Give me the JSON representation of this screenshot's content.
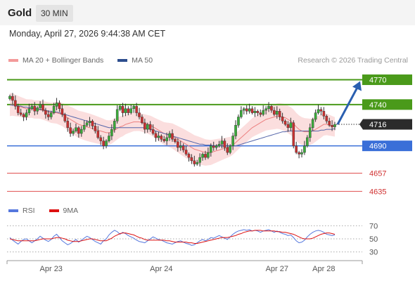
{
  "header": {
    "symbol": "Gold",
    "timeframe": "30 MIN",
    "datetime": "Monday, April 27, 2026 9:44:38 AM CET"
  },
  "legend": {
    "bollinger_label": "MA 20 + Bollinger Bands",
    "ma50_label": "MA 50",
    "credit": "Research © 2026 Trading Central",
    "rsi_label": "RSI",
    "rsi_ma_label": "9MA"
  },
  "colors": {
    "resistance": "#4a9a1a",
    "pivot": "#3a6fd8",
    "support": "#e05050",
    "last_price": "#2b2b2b",
    "arrow": "#2a5fb0",
    "ma20": "#ec8080",
    "ma50": "#5566aa",
    "band": "#fbdada",
    "candle_up": "#3aaa3a",
    "candle_down": "#c83030",
    "rsi": "#5577dd",
    "rsi_ma": "#dd1111"
  },
  "chart_data": [
    {
      "type": "candlestick",
      "title": "Gold",
      "timeframe": "30 MIN",
      "x_tick_labels": [
        "Apr 23",
        "Apr 24",
        "Apr 27",
        "Apr 28"
      ],
      "ylim": [
        4620,
        4790
      ],
      "last_price": 4716,
      "levels": [
        {
          "value": 4770,
          "label": "4770",
          "kind": "resistance"
        },
        {
          "value": 4740,
          "label": "4740",
          "kind": "resistance"
        },
        {
          "value": 4716,
          "label": "4716",
          "kind": "last"
        },
        {
          "value": 4690,
          "label": "4690",
          "kind": "pivot"
        },
        {
          "value": 4657,
          "label": "4657",
          "kind": "support"
        },
        {
          "value": 4635,
          "label": "4635",
          "kind": "support"
        }
      ],
      "forecast_arrow": {
        "from": 4716,
        "to": 4770
      },
      "close": [
        4750,
        4745,
        4738,
        4730,
        4728,
        4725,
        4730,
        4735,
        4738,
        4732,
        4736,
        4740,
        4733,
        4728,
        4725,
        4730,
        4738,
        4742,
        4735,
        4728,
        4720,
        4712,
        4705,
        4708,
        4712,
        4705,
        4710,
        4715,
        4718,
        4720,
        4714,
        4708,
        4700,
        4696,
        4690,
        4696,
        4702,
        4710,
        4720,
        4734,
        4738,
        4730,
        4735,
        4730,
        4735,
        4738,
        4730,
        4725,
        4718,
        4710,
        4716,
        4710,
        4705,
        4700,
        4702,
        4698,
        4696,
        4700,
        4705,
        4698,
        4695,
        4688,
        4690,
        4685,
        4680,
        4676,
        4672,
        4668,
        4670,
        4676,
        4680,
        4676,
        4682,
        4690,
        4688,
        4690,
        4692,
        4696,
        4688,
        4682,
        4690,
        4702,
        4715,
        4725,
        4733,
        4735,
        4732,
        4735,
        4730,
        4732,
        4730,
        4728,
        4733,
        4735,
        4738,
        4733,
        4728,
        4732,
        4725,
        4720,
        4716,
        4712,
        4718,
        4690,
        4682,
        4680,
        4682,
        4690,
        4700,
        4712,
        4722,
        4730,
        4734,
        4732,
        4726,
        4720,
        4715,
        4713,
        4716
      ],
      "ma20": [
        4740,
        4740,
        4739,
        4738,
        4737,
        4736,
        4735,
        4735,
        4735,
        4734,
        4734,
        4734,
        4733,
        4732,
        4731,
        4730,
        4730,
        4730,
        4729,
        4728,
        4726,
        4724,
        4722,
        4720,
        4718,
        4716,
        4715,
        4714,
        4713,
        4712,
        4711,
        4710,
        4709,
        4708,
        4707,
        4706,
        4706,
        4707,
        4709,
        4711,
        4713,
        4714,
        4716,
        4717,
        4718,
        4719,
        4719,
        4719,
        4718,
        4717,
        4716,
        4715,
        4713,
        4711,
        4709,
        4707,
        4705,
        4704,
        4703,
        4702,
        4700,
        4698,
        4696,
        4694,
        4692,
        4690,
        4688,
        4686,
        4685,
        4684,
        4683,
        4682,
        4682,
        4682,
        4683,
        4684,
        4685,
        4686,
        4687,
        4688,
        4689,
        4691,
        4694,
        4697,
        4700,
        4703,
        4706,
        4709,
        4712,
        4714,
        4716,
        4718,
        4720,
        4722,
        4723,
        4724,
        4725,
        4726,
        4726,
        4725,
        4724,
        4722,
        4720,
        4717,
        4713,
        4710,
        4708,
        4707,
        4707,
        4707,
        4708,
        4710,
        4712,
        4714,
        4716,
        4716,
        4715,
        4714,
        4713
      ],
      "ma50": [
        4740,
        4739,
        4739,
        4738,
        4738,
        4737,
        4737,
        4736,
        4736,
        4735,
        4735,
        4734,
        4734,
        4733,
        4732,
        4732,
        4731,
        4731,
        4730,
        4729,
        4728,
        4727,
        4726,
        4725,
        4724,
        4723,
        4722,
        4721,
        4720,
        4719,
        4718,
        4717,
        4716,
        4715,
        4714,
        4713,
        4712,
        4712,
        4712,
        4712,
        4712,
        4712,
        4712,
        4712,
        4712,
        4712,
        4712,
        4712,
        4712,
        4712,
        4711,
        4710,
        4709,
        4708,
        4707,
        4706,
        4705,
        4704,
        4703,
        4702,
        4701,
        4700,
        4699,
        4698,
        4697,
        4696,
        4695,
        4694,
        4693,
        4692,
        4692,
        4691,
        4691,
        4691,
        4690,
        4690,
        4690,
        4690,
        4690,
        4690,
        4690,
        4690,
        4690,
        4691,
        4692,
        4693,
        4694,
        4695,
        4696,
        4697,
        4698,
        4699,
        4700,
        4701,
        4702,
        4703,
        4704,
        4705,
        4706,
        4707,
        4707,
        4708,
        4708,
        4708,
        4708,
        4708,
        4708,
        4708,
        4708,
        4708,
        4708,
        4708,
        4708,
        4709,
        4709,
        4710,
        4710,
        4710,
        4711
      ]
    },
    {
      "type": "line",
      "title": "RSI",
      "ylim": [
        20,
        80
      ],
      "y_ticks": [
        "70",
        "50",
        "30"
      ],
      "series": [
        {
          "name": "RSI",
          "values": [
            52,
            48,
            45,
            42,
            46,
            49,
            50,
            47,
            44,
            47,
            50,
            54,
            51,
            48,
            46,
            49,
            54,
            57,
            52,
            47,
            44,
            41,
            43,
            46,
            49,
            45,
            48,
            51,
            54,
            52,
            49,
            46,
            44,
            42,
            47,
            50,
            56,
            60,
            63,
            61,
            57,
            60,
            58,
            55,
            53,
            51,
            48,
            46,
            45,
            44,
            47,
            50,
            53,
            51,
            49,
            48,
            46,
            44,
            43,
            42,
            44,
            46,
            47,
            45,
            43,
            42,
            40,
            41,
            44,
            47,
            49,
            47,
            49,
            52,
            51,
            53,
            55,
            53,
            51,
            49,
            53,
            57,
            60,
            62,
            63,
            64,
            63,
            64,
            62,
            63,
            62,
            60,
            62,
            63,
            64,
            62,
            60,
            62,
            60,
            58,
            57,
            55,
            56,
            52,
            47,
            44,
            45,
            48,
            53,
            57,
            60,
            62,
            63,
            62,
            60,
            57,
            56,
            55,
            56
          ]
        },
        {
          "name": "9MA",
          "values": [
            50,
            49,
            48,
            47,
            47,
            47,
            47,
            47,
            47,
            47,
            48,
            49,
            50,
            50,
            50,
            50,
            51,
            52,
            52,
            51,
            50,
            48,
            47,
            46,
            46,
            46,
            47,
            48,
            49,
            50,
            50,
            49,
            48,
            47,
            47,
            47,
            49,
            51,
            54,
            56,
            58,
            59,
            59,
            58,
            57,
            56,
            54,
            52,
            51,
            49,
            48,
            48,
            48,
            48,
            48,
            48,
            48,
            47,
            47,
            46,
            45,
            45,
            45,
            45,
            45,
            44,
            44,
            43,
            43,
            44,
            45,
            46,
            47,
            48,
            49,
            50,
            51,
            52,
            52,
            52,
            53,
            54,
            55,
            57,
            58,
            60,
            61,
            62,
            62,
            63,
            63,
            63,
            62,
            62,
            62,
            62,
            62,
            61,
            61,
            60,
            60,
            59,
            58,
            57,
            55,
            53,
            51,
            50,
            50,
            50,
            51,
            53,
            55,
            57,
            58,
            59,
            59,
            58,
            57
          ]
        }
      ]
    }
  ]
}
